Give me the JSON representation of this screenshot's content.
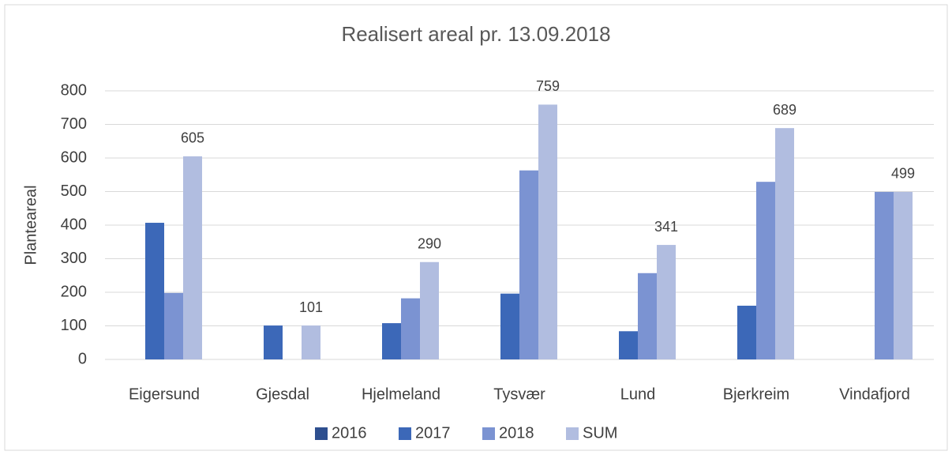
{
  "chart_data": {
    "type": "bar",
    "title": "Realisert areal pr. 13.09.2018",
    "y_label": "Planteareal",
    "categories": [
      "Eigersund",
      "Gjesdal",
      "Hjelmeland",
      "Tysvær",
      "Lund",
      "Bjerkreim",
      "Vindafjord"
    ],
    "series": [
      {
        "name": "2016",
        "color": "#2e4f8f",
        "values": [
          null,
          null,
          null,
          null,
          null,
          null,
          null
        ]
      },
      {
        "name": "2017",
        "color": "#3c68b8",
        "values": [
          407,
          101,
          108,
          196,
          84,
          160,
          null
        ]
      },
      {
        "name": "2018",
        "color": "#7b93d2",
        "values": [
          198,
          null,
          182,
          563,
          257,
          529,
          499
        ]
      },
      {
        "name": "SUM",
        "color": "#b1bde0",
        "values": [
          605,
          101,
          290,
          759,
          341,
          689,
          499
        ],
        "data_labels": true
      }
    ],
    "ylim": [
      0,
      800
    ],
    "yticks": [
      0,
      100,
      200,
      300,
      400,
      500,
      600,
      700,
      800
    ],
    "grid": true,
    "legend": "bottom"
  }
}
